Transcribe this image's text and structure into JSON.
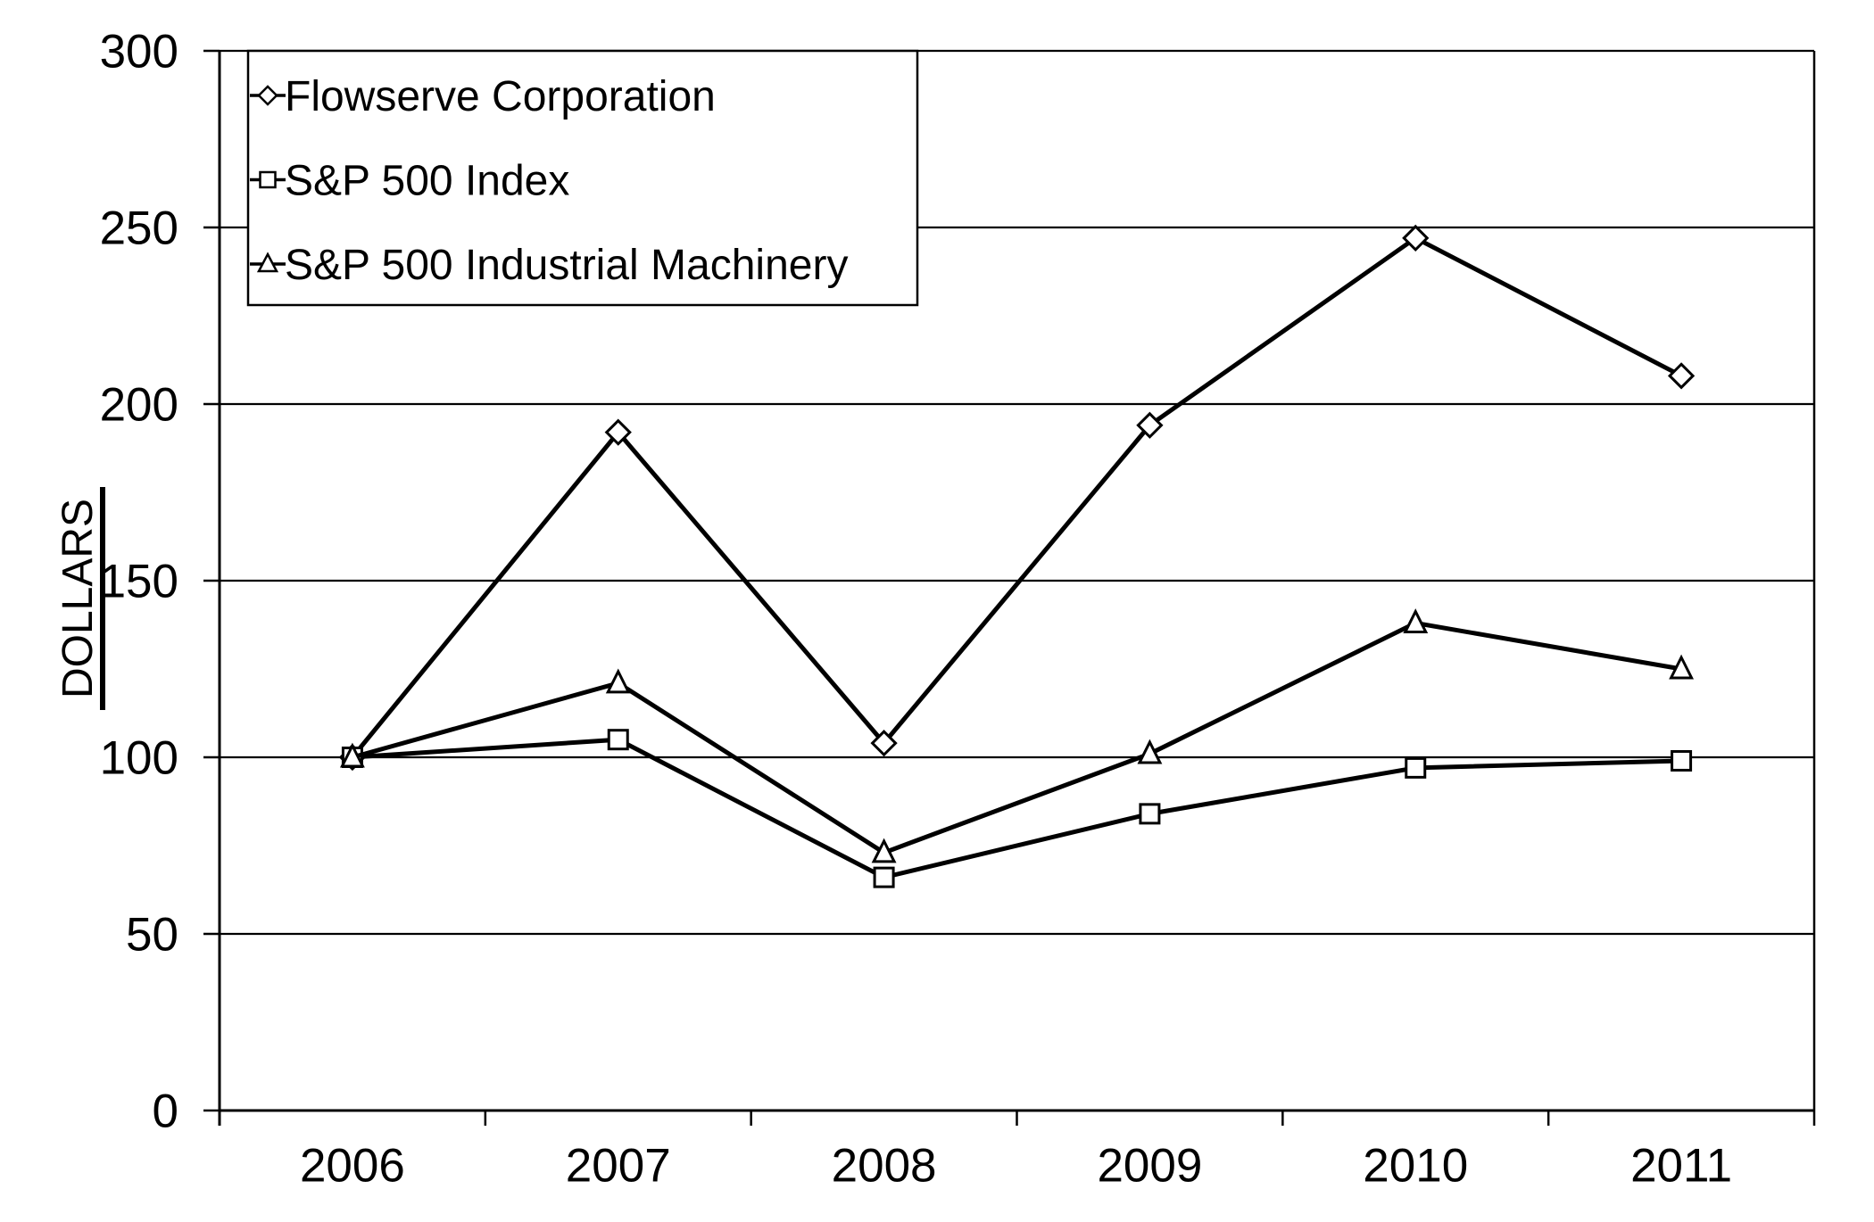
{
  "chart_data": {
    "type": "line",
    "title": "",
    "ylabel": "DOLLARS",
    "categories": [
      "2006",
      "2007",
      "2008",
      "2009",
      "2010",
      "2011"
    ],
    "y_ticks": [
      0,
      50,
      100,
      150,
      200,
      250,
      300
    ],
    "ylim": [
      0,
      300
    ],
    "grid": "horizontal-only",
    "legend_position": "top-left-inside-box",
    "series": [
      {
        "name": "Flowserve Corporation",
        "marker": "diamond",
        "values": [
          100,
          192,
          104,
          194,
          247,
          208
        ]
      },
      {
        "name": "S&P 500 Index",
        "marker": "square",
        "values": [
          100,
          105,
          66,
          84,
          97,
          99
        ]
      },
      {
        "name": "S&P 500 Industrial Machinery",
        "marker": "triangle",
        "values": [
          100,
          121,
          73,
          101,
          138,
          125
        ]
      }
    ],
    "colors": {
      "series_line": "#000000",
      "marker_fill": "#ffffff",
      "background": "#ffffff",
      "text": "#000000"
    }
  }
}
